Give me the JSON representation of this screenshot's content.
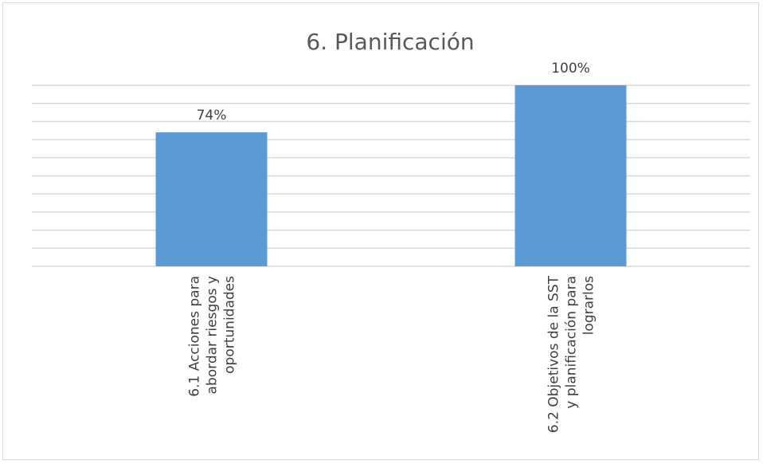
{
  "chart_data": {
    "type": "bar",
    "title": "6. Planificación",
    "categories": [
      [
        "6.1 Acciones para",
        "abordar riesgos y",
        "oportunidades"
      ],
      [
        "6.2 Objetivos de la SST",
        "y planificación para",
        "lograrlos"
      ]
    ],
    "values": [
      74,
      100
    ],
    "value_labels": [
      "74%",
      "100%"
    ],
    "ylim": [
      0,
      100
    ],
    "grid": true,
    "legend": "none",
    "bar_color": "#5b9bd5",
    "grid_color": "#d9d9d9",
    "text_color": "#404040",
    "title_color": "#595959"
  }
}
